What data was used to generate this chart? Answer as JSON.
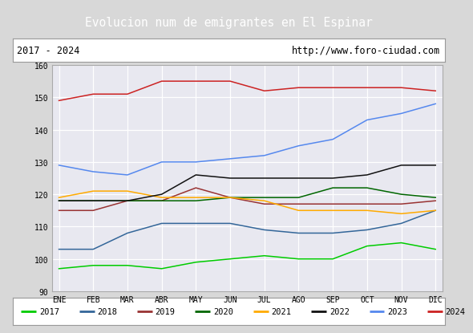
{
  "title": "Evolucion num de emigrantes en El Espinar",
  "title_bg": "#4e7fc4",
  "subtitle_left": "2017 - 2024",
  "subtitle_right": "http://www.foro-ciudad.com",
  "months": [
    "ENE",
    "FEB",
    "MAR",
    "ABR",
    "MAY",
    "JUN",
    "JUL",
    "AGO",
    "SEP",
    "OCT",
    "NOV",
    "DIC"
  ],
  "ylim": [
    90,
    160
  ],
  "yticks": [
    90,
    100,
    110,
    120,
    130,
    140,
    150,
    160
  ],
  "series": {
    "2017": {
      "color": "#00cc00",
      "values": [
        97,
        98,
        98,
        97,
        99,
        100,
        101,
        100,
        100,
        104,
        105,
        103
      ]
    },
    "2018": {
      "color": "#336699",
      "values": [
        103,
        103,
        108,
        111,
        111,
        111,
        109,
        108,
        108,
        109,
        111,
        115
      ]
    },
    "2019": {
      "color": "#993333",
      "values": [
        115,
        115,
        118,
        118,
        122,
        119,
        117,
        117,
        117,
        117,
        117,
        118
      ]
    },
    "2020": {
      "color": "#006600",
      "values": [
        118,
        118,
        118,
        118,
        118,
        119,
        119,
        119,
        122,
        122,
        120,
        119
      ]
    },
    "2021": {
      "color": "#ffaa00",
      "values": [
        119,
        121,
        121,
        119,
        119,
        119,
        118,
        115,
        115,
        115,
        114,
        115
      ]
    },
    "2022": {
      "color": "#111111",
      "values": [
        118,
        118,
        118,
        120,
        126,
        125,
        125,
        125,
        125,
        126,
        129,
        129
      ]
    },
    "2023": {
      "color": "#5588ee",
      "values": [
        129,
        127,
        126,
        130,
        130,
        131,
        132,
        135,
        137,
        143,
        145,
        148
      ]
    },
    "2024": {
      "color": "#cc2222",
      "values": [
        149,
        151,
        151,
        155,
        155,
        155,
        152,
        153,
        153,
        153,
        153,
        152
      ]
    }
  },
  "legend_order": [
    "2017",
    "2018",
    "2019",
    "2020",
    "2021",
    "2022",
    "2023",
    "2024"
  ],
  "bg_color": "#d8d8d8",
  "plot_bg": "#e8e8f0",
  "grid_color": "#ffffff"
}
